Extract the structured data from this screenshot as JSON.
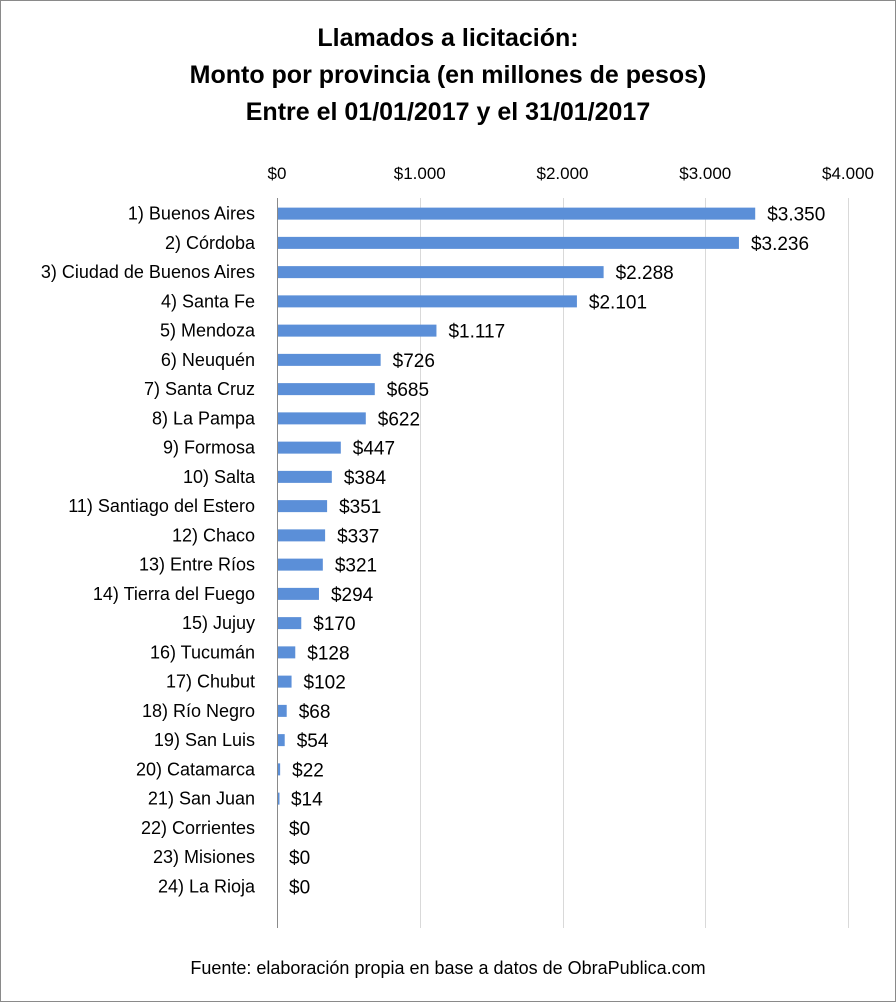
{
  "chart_data": {
    "type": "bar",
    "orientation": "horizontal",
    "title": [
      "Llamados a licitación:",
      "Monto por provincia (en millones de pesos)",
      "Entre el 01/01/2017 y el 31/01/2017"
    ],
    "xlim": [
      0,
      4000
    ],
    "xticks": [
      0,
      1000,
      2000,
      3000,
      4000
    ],
    "xtick_labels": [
      "$0",
      "$1.000",
      "$2.000",
      "$3.000",
      "$4.000"
    ],
    "xaxis_position": "top",
    "grid": true,
    "categories": [
      "1) Buenos Aires",
      "2) Córdoba",
      "3) Ciudad de Buenos Aires",
      "4) Santa Fe",
      "5) Mendoza",
      "6) Neuquén",
      "7) Santa Cruz",
      "8) La Pampa",
      "9) Formosa",
      "10) Salta",
      "11) Santiago del Estero",
      "12) Chaco",
      "13) Entre Ríos",
      "14) Tierra del Fuego",
      "15) Jujuy",
      "16) Tucumán",
      "17) Chubut",
      "18) Río Negro",
      "19) San Luis",
      "20) Catamarca",
      "21) San Juan",
      "22) Corrientes",
      "23) Misiones",
      "24) La Rioja"
    ],
    "values": [
      3350,
      3236,
      2288,
      2101,
      1117,
      726,
      685,
      622,
      447,
      384,
      351,
      337,
      321,
      294,
      170,
      128,
      102,
      68,
      54,
      22,
      14,
      0,
      0,
      0
    ],
    "data_labels": [
      "$3.350",
      "$3.236",
      "$2.288",
      "$2.101",
      "$1.117",
      "$726",
      "$685",
      "$622",
      "$447",
      "$384",
      "$351",
      "$337",
      "$321",
      "$294",
      "$170",
      "$128",
      "$102",
      "$68",
      "$54",
      "$22",
      "$14",
      "$0",
      "$0",
      "$0"
    ],
    "bar_color": "#5b8fd8",
    "grid_color": "#d9d9d9",
    "source": "Fuente: elaboración propia en base a datos de ObraPublica.com"
  }
}
